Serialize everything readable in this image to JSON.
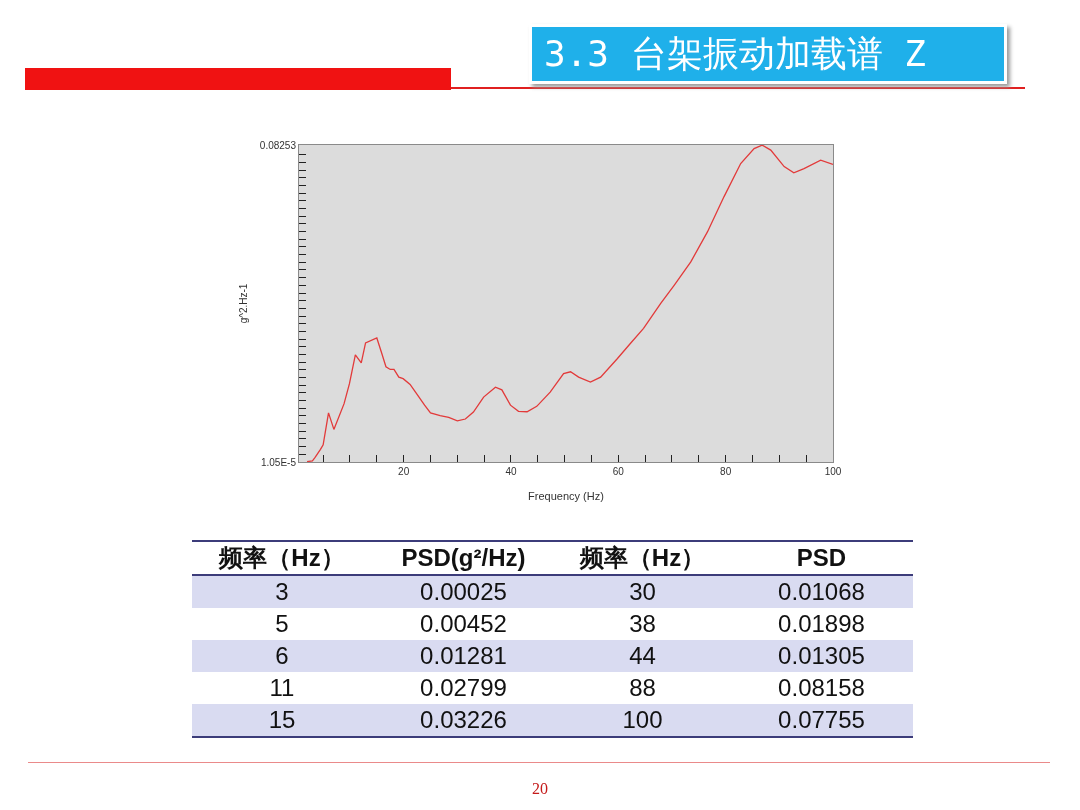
{
  "chart_data": [
    {
      "type": "line",
      "title": "3.3 台架振动加载谱 Z",
      "xlabel": "Frequency (Hz)",
      "ylabel": "g^2.Hz-1",
      "annotations": [
        "20"
      ],
      "x": [
        2,
        3,
        3.5,
        4.5,
        5,
        6,
        7,
        8.9,
        9.9,
        11,
        12.1,
        12.9,
        15,
        15.9,
        16.7,
        17.5,
        18.2,
        19.1,
        19.9,
        21.2,
        22.6,
        23.9,
        25,
        26.8,
        28.4,
        30,
        31.5,
        33,
        34.9,
        37.1,
        38.3,
        39.9,
        41.4,
        43,
        44.8,
        47.3,
        49.8,
        51.1,
        52.6,
        54.8,
        56.7,
        59.8,
        62.2,
        64.7,
        67.9,
        70.4,
        73.5,
        76.6,
        79.7,
        82.8,
        85.3,
        86.8,
        88.4,
        90.9,
        92.7,
        94.6,
        97.7,
        100
      ],
      "series": [
        {
          "color": "#e23a3a",
          "values": [
            0.0001,
            0.0003,
            0.0012,
            0.0033,
            0.0045,
            0.0128,
            0.0085,
            0.0152,
            0.0204,
            0.0279,
            0.0258,
            0.031,
            0.0323,
            0.0284,
            0.0248,
            0.0241,
            0.0241,
            0.0221,
            0.0217,
            0.0202,
            0.0174,
            0.0148,
            0.0128,
            0.0121,
            0.0116,
            0.0107,
            0.0112,
            0.013,
            0.0169,
            0.0195,
            0.0188,
            0.0148,
            0.0132,
            0.0131,
            0.0145,
            0.0182,
            0.023,
            0.0235,
            0.0221,
            0.0208,
            0.0221,
            0.0269,
            0.0308,
            0.0348,
            0.0413,
            0.046,
            0.0521,
            0.0599,
            0.0691,
            0.0777,
            0.0816,
            0.0825,
            0.0812,
            0.0769,
            0.0753,
            0.0764,
            0.0786,
            0.0775
          ]
        }
      ],
      "xlim": [
        0.5,
        100
      ],
      "xticks": [
        {
          "value": 5,
          "label": null
        },
        {
          "value": 10,
          "label": null
        },
        {
          "value": 15,
          "label": null
        },
        20,
        {
          "value": 25,
          "label": null
        },
        {
          "value": 30,
          "label": null
        },
        {
          "value": 35,
          "label": null
        },
        40,
        {
          "value": 45,
          "label": null
        },
        {
          "value": 50,
          "label": null
        },
        {
          "value": 55,
          "label": null
        },
        60,
        {
          "value": 65,
          "label": null
        },
        {
          "value": 70,
          "label": null
        },
        {
          "value": 75,
          "label": null
        },
        80,
        {
          "value": 85,
          "label": null
        },
        {
          "value": 90,
          "label": null
        },
        {
          "value": 95,
          "label": null
        },
        100
      ],
      "ylim": [
        1.05e-05,
        0.08253
      ],
      "yticks": [
        {
          "value": 1.05e-05,
          "label": "1.05E-5"
        },
        {
          "value": 0.002,
          "label": null
        },
        {
          "value": 0.004,
          "label": null
        },
        {
          "value": 0.006,
          "label": null
        },
        {
          "value": 0.008,
          "label": null
        },
        {
          "value": 0.01,
          "label": null
        },
        {
          "value": 0.012,
          "label": null
        },
        {
          "value": 0.014,
          "label": null
        },
        {
          "value": 0.016,
          "label": null
        },
        {
          "value": 0.018,
          "label": null
        },
        {
          "value": 0.02,
          "label": null
        },
        {
          "value": 0.022,
          "label": null
        },
        {
          "value": 0.024,
          "label": null
        },
        {
          "value": 0.026,
          "label": null
        },
        {
          "value": 0.028,
          "label": null
        },
        {
          "value": 0.03,
          "label": null
        },
        {
          "value": 0.032,
          "label": null
        },
        {
          "value": 0.034,
          "label": null
        },
        {
          "value": 0.036,
          "label": null
        },
        {
          "value": 0.038,
          "label": null
        },
        {
          "value": 0.04,
          "label": null
        },
        {
          "value": 0.042,
          "label": null
        },
        {
          "value": 0.044,
          "label": null
        },
        {
          "value": 0.046,
          "label": null
        },
        {
          "value": 0.048,
          "label": null
        },
        {
          "value": 0.05,
          "label": null
        },
        {
          "value": 0.052,
          "label": null
        },
        {
          "value": 0.054,
          "label": null
        },
        {
          "value": 0.056,
          "label": null
        },
        {
          "value": 0.058,
          "label": null
        },
        {
          "value": 0.06,
          "label": null
        },
        {
          "value": 0.062,
          "label": null
        },
        {
          "value": 0.064,
          "label": null
        },
        {
          "value": 0.066,
          "label": null
        },
        {
          "value": 0.068,
          "label": null
        },
        {
          "value": 0.07,
          "label": null
        },
        {
          "value": 0.072,
          "label": null
        },
        {
          "value": 0.074,
          "label": null
        },
        {
          "value": 0.076,
          "label": null
        },
        {
          "value": 0.078,
          "label": null
        },
        {
          "value": 0.08,
          "label": null
        },
        0.08253
      ]
    },
    {
      "type": "other",
      "annotations": [
        "频率（Hz）",
        "PSD(g²/Hz)",
        "频率（Hz）",
        "PSD"
      ],
      "categories": [
        "3",
        "5",
        "6",
        "11",
        "15",
        "30",
        "38",
        "44",
        "88",
        "100"
      ],
      "values": [
        0.00025,
        0.00452,
        0.01281,
        0.02799,
        0.03226,
        0.01068,
        0.01898,
        0.01305,
        0.08158,
        0.07755
      ],
      "data_labels": true
    }
  ]
}
